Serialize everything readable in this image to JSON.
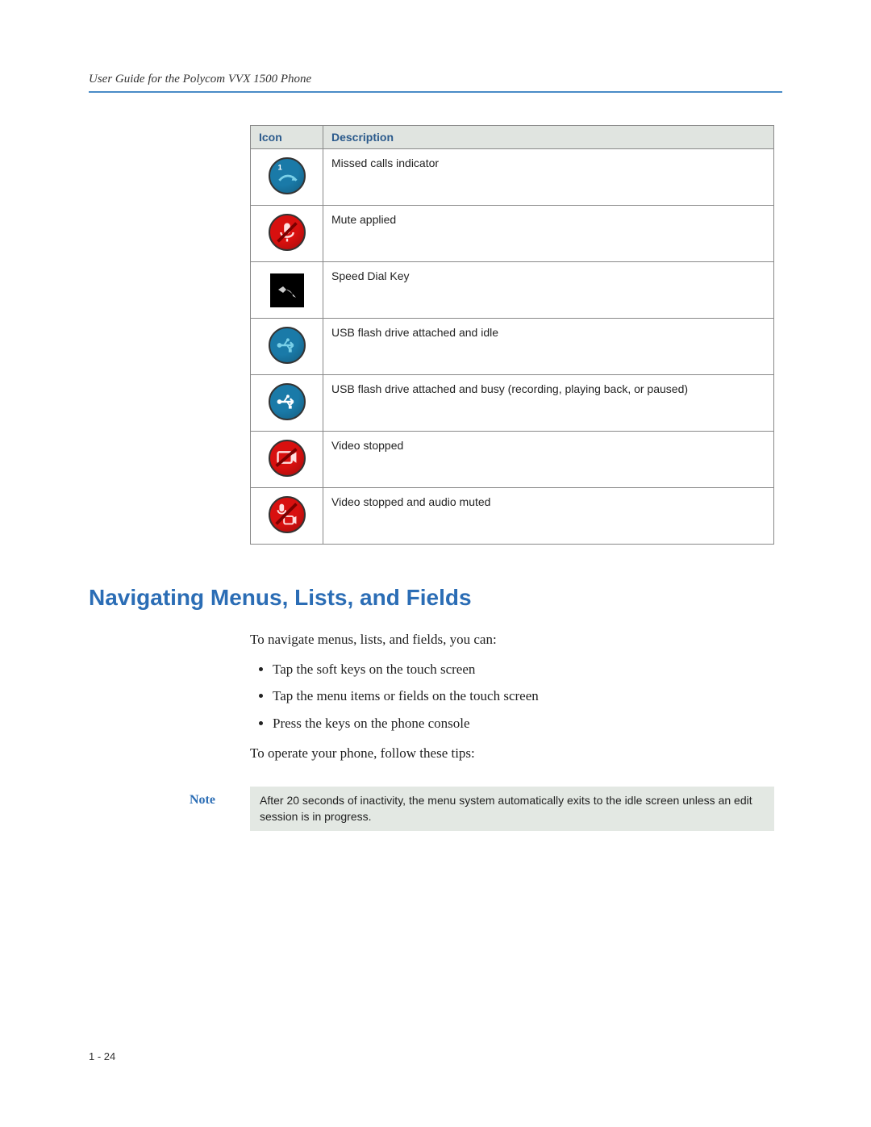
{
  "header": {
    "title": "User Guide for the Polycom VVX 1500 Phone"
  },
  "icon_table": {
    "columns": [
      "Icon",
      "Description"
    ],
    "rows": [
      {
        "icon": "missed-calls",
        "icon_shape": "circle",
        "bg": "#1a7aa8",
        "fg": "#7ad0e8",
        "desc": "Missed calls indicator"
      },
      {
        "icon": "mute",
        "icon_shape": "circle",
        "bg": "#d8100f",
        "fg": "#ffe0e0",
        "desc": "Mute applied"
      },
      {
        "icon": "speed-dial",
        "icon_shape": "square",
        "bg": "#000000",
        "fg": "#cccccc",
        "desc": "Speed Dial Key"
      },
      {
        "icon": "usb-idle",
        "icon_shape": "circle",
        "bg": "#1a7aa8",
        "fg": "#7ad0e8",
        "desc": "USB flash drive attached and idle"
      },
      {
        "icon": "usb-busy",
        "icon_shape": "circle",
        "bg": "#1a7aa8",
        "fg": "#7ad0e8",
        "desc": "USB flash drive attached and busy (recording, playing back, or paused)"
      },
      {
        "icon": "video-stopped",
        "icon_shape": "circle",
        "bg": "#d8100f",
        "fg": "#ffe0e0",
        "desc": "Video stopped"
      },
      {
        "icon": "video-audio-muted",
        "icon_shape": "circle",
        "bg": "#d8100f",
        "fg": "#ffe0e0",
        "desc": "Video stopped and audio muted"
      }
    ]
  },
  "section": {
    "heading": "Navigating Menus, Lists, and Fields",
    "intro": "To navigate menus, lists, and fields, you can:",
    "bullets": [
      "Tap the soft keys on the touch screen",
      "Tap the menu items or fields on the touch screen",
      "Press the keys on the phone console"
    ],
    "outro": "To operate your phone, follow these tips:"
  },
  "note": {
    "label": "Note",
    "text": "After 20 seconds of inactivity, the menu system automatically exits to the idle screen unless an edit session is in progress."
  },
  "page_number": "1 - 24",
  "colors": {
    "accent": "#2b6db5",
    "rule": "#4a8cc7",
    "table_header_bg": "#e0e4e0",
    "note_bg": "#e3e8e3"
  }
}
